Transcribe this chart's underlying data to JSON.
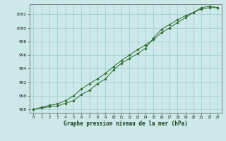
{
  "line1_x": [
    0,
    1,
    2,
    3,
    4,
    5,
    6,
    7,
    8,
    9,
    10,
    11,
    12,
    13,
    14,
    15,
    16,
    17,
    18,
    19,
    20,
    21,
    22,
    23
  ],
  "line1_y": [
    988.0,
    988.3,
    988.6,
    988.8,
    989.3,
    990.0,
    991.0,
    991.8,
    992.5,
    993.3,
    994.3,
    995.2,
    996.0,
    996.8,
    997.5,
    998.3,
    999.3,
    1000.0,
    1000.8,
    1001.5,
    1002.3,
    1003.0,
    1003.2,
    1003.0
  ],
  "line2_x": [
    0,
    1,
    2,
    3,
    4,
    5,
    6,
    7,
    8,
    9,
    10,
    11,
    12,
    13,
    14,
    15,
    16,
    17,
    18,
    19,
    20,
    21,
    22,
    23
  ],
  "line2_y": [
    988.0,
    988.2,
    988.4,
    988.5,
    988.9,
    989.3,
    990.2,
    990.8,
    991.8,
    992.5,
    993.8,
    994.8,
    995.5,
    996.2,
    997.0,
    998.5,
    999.8,
    1000.5,
    1001.2,
    1001.8,
    1002.3,
    1002.8,
    1003.0,
    1003.0
  ],
  "line_color": "#2d6a2d",
  "bg_color": "#cce8e8",
  "grid_color": "#99cccc",
  "xlabel": "Graphe pression niveau de la mer (hPa)",
  "ylim_min": 987.5,
  "ylim_max": 1003.5,
  "xlim_min": -0.5,
  "xlim_max": 23.5,
  "yticks": [
    988,
    990,
    992,
    994,
    996,
    998,
    1000,
    1002
  ],
  "xticks": [
    0,
    1,
    2,
    3,
    4,
    5,
    6,
    7,
    8,
    9,
    10,
    11,
    12,
    13,
    14,
    15,
    16,
    17,
    18,
    19,
    20,
    21,
    22,
    23
  ]
}
